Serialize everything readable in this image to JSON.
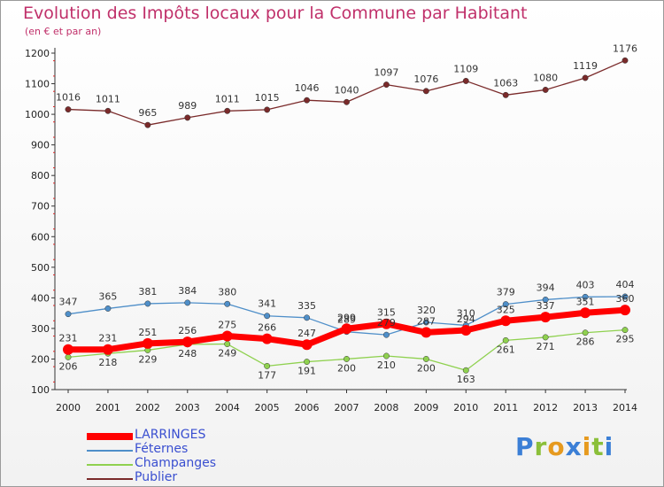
{
  "title": "Evolution des Impôts locaux pour la Commune par Habitant",
  "subtitle": "(en € et par an)",
  "logo": {
    "letters": [
      "P",
      "r",
      "o",
      "x",
      "i",
      "t",
      "i"
    ],
    "colors": [
      "#3b7fd6",
      "#8bbf3a",
      "#e69a1f",
      "#3b7fd6",
      "#e69a1f",
      "#8bbf3a",
      "#3b7fd6"
    ]
  },
  "chart_data": {
    "type": "line",
    "x": [
      2000,
      2001,
      2002,
      2003,
      2004,
      2005,
      2006,
      2007,
      2008,
      2009,
      2010,
      2011,
      2012,
      2013,
      2014
    ],
    "ylim": [
      100,
      1200
    ],
    "yticks": [
      100,
      200,
      300,
      400,
      500,
      600,
      700,
      800,
      900,
      1000,
      1100,
      1200
    ],
    "grid": false,
    "legend_position": "bottom-left",
    "series": [
      {
        "name": "LARRINGES",
        "color": "#ff0000",
        "values": [
          231,
          231,
          251,
          256,
          275,
          266,
          247,
          299,
          315,
          287,
          294,
          325,
          337,
          351,
          360
        ]
      },
      {
        "name": "Féternes",
        "color": "#4f8fc9",
        "values": [
          347,
          365,
          381,
          384,
          380,
          341,
          335,
          289,
          279,
          320,
          310,
          379,
          394,
          403,
          404
        ]
      },
      {
        "name": "Champanges",
        "color": "#8fd14f",
        "values": [
          206,
          218,
          229,
          248,
          249,
          177,
          191,
          200,
          210,
          200,
          163,
          261,
          271,
          286,
          295
        ]
      },
      {
        "name": "Publier",
        "color": "#7a2a2a",
        "values": [
          1016,
          1011,
          965,
          989,
          1011,
          1015,
          1046,
          1040,
          1097,
          1076,
          1109,
          1063,
          1080,
          1119,
          1176
        ]
      }
    ]
  }
}
